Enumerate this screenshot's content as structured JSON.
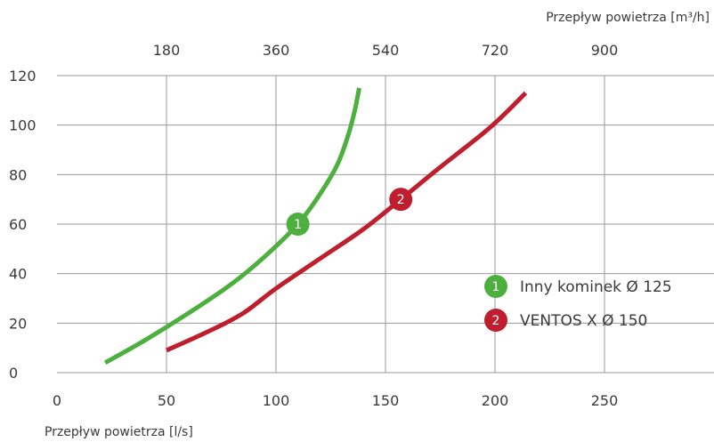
{
  "chart_data": {
    "type": "line",
    "xlabel": "Przepływ powietrza [l/s]",
    "x2label": "Przepływ powietrza [m³/h]",
    "ylabel": "",
    "xlim": [
      0,
      300
    ],
    "ylim": [
      0,
      120
    ],
    "x_ticks": [
      0,
      50,
      100,
      150,
      200,
      250
    ],
    "x_tick_labels": [
      "0",
      "50",
      "100",
      "150",
      "200",
      "250"
    ],
    "x2_ticks": [
      50,
      100,
      150,
      200,
      250
    ],
    "x2_tick_labels": [
      "180",
      "360",
      "540",
      "720",
      "900"
    ],
    "y_ticks": [
      0,
      20,
      40,
      60,
      80,
      100,
      120
    ],
    "y_tick_labels": [
      "0",
      "20",
      "40",
      "60",
      "80",
      "100",
      "120"
    ],
    "grid": "vertical",
    "legend_position": "lower-right",
    "series": [
      {
        "name": "Inny kominek Ø 125",
        "marker_label": "1",
        "color": "#4caf3e",
        "marker_at": [
          110,
          60
        ],
        "points": [
          [
            22,
            4
          ],
          [
            40,
            13
          ],
          [
            60,
            24
          ],
          [
            80,
            36
          ],
          [
            95,
            47
          ],
          [
            110,
            60
          ],
          [
            120,
            72
          ],
          [
            128,
            84
          ],
          [
            133,
            96
          ],
          [
            136,
            106
          ],
          [
            138,
            115
          ]
        ]
      },
      {
        "name": "VENTOS X Ø 150",
        "marker_label": "2",
        "color": "#be1e2d",
        "marker_at": [
          157,
          70
        ],
        "points": [
          [
            50,
            9
          ],
          [
            70,
            17
          ],
          [
            85,
            24
          ],
          [
            100,
            34
          ],
          [
            120,
            46
          ],
          [
            140,
            58
          ],
          [
            157,
            70
          ],
          [
            175,
            83
          ],
          [
            195,
            97
          ],
          [
            205,
            105
          ],
          [
            214,
            113
          ]
        ]
      }
    ]
  }
}
